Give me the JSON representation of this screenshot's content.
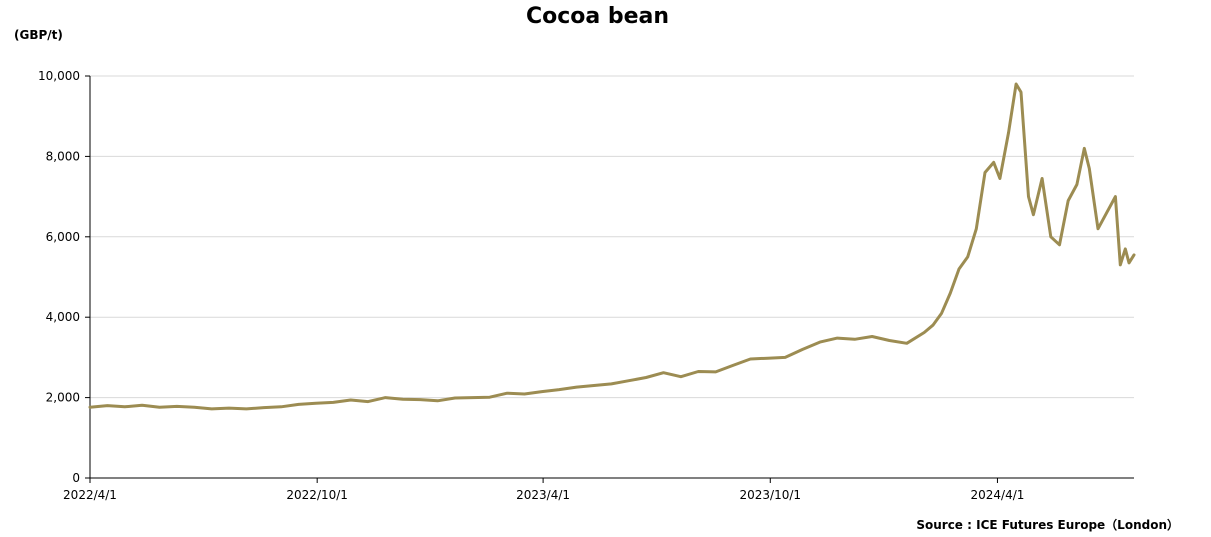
{
  "chart_data": {
    "type": "line",
    "title": "Cocoa bean",
    "ylabel": "(GBP/t)",
    "source": "Source : ICE Futures Europe（London）",
    "ylim": [
      0,
      10000
    ],
    "xlim": [
      "2022-04-01",
      "2024-07-20"
    ],
    "y_ticks": [
      0,
      2000,
      4000,
      6000,
      8000,
      10000
    ],
    "y_tick_labels": [
      "0",
      "2,000",
      "4,000",
      "6,000",
      "8,000",
      "10,000"
    ],
    "x_ticks": [
      "2022-04-01",
      "2022-10-01",
      "2023-04-01",
      "2023-10-01",
      "2024-04-01"
    ],
    "x_tick_labels": [
      "2022/4/1",
      "2022/10/1",
      "2023/4/1",
      "2023/10/1",
      "2024/4/1"
    ],
    "grid": "horizontal",
    "legend": "none",
    "colors": {
      "line": "#9C8C52",
      "grid": "#D9D9D9",
      "axis": "#000000"
    },
    "series": [
      {
        "points": [
          [
            "2022-04-01",
            1760
          ],
          [
            "2022-04-15",
            1800
          ],
          [
            "2022-04-29",
            1770
          ],
          [
            "2022-05-13",
            1810
          ],
          [
            "2022-05-27",
            1760
          ],
          [
            "2022-06-10",
            1780
          ],
          [
            "2022-06-24",
            1760
          ],
          [
            "2022-07-08",
            1720
          ],
          [
            "2022-07-22",
            1740
          ],
          [
            "2022-08-05",
            1720
          ],
          [
            "2022-08-19",
            1750
          ],
          [
            "2022-09-02",
            1770
          ],
          [
            "2022-09-16",
            1830
          ],
          [
            "2022-09-30",
            1860
          ],
          [
            "2022-10-14",
            1880
          ],
          [
            "2022-10-28",
            1940
          ],
          [
            "2022-11-11",
            1900
          ],
          [
            "2022-11-25",
            2000
          ],
          [
            "2022-12-09",
            1960
          ],
          [
            "2022-12-23",
            1950
          ],
          [
            "2023-01-06",
            1920
          ],
          [
            "2023-01-20",
            1990
          ],
          [
            "2023-02-03",
            2000
          ],
          [
            "2023-02-17",
            2010
          ],
          [
            "2023-03-03",
            2110
          ],
          [
            "2023-03-17",
            2090
          ],
          [
            "2023-03-31",
            2150
          ],
          [
            "2023-04-14",
            2200
          ],
          [
            "2023-04-28",
            2260
          ],
          [
            "2023-05-12",
            2300
          ],
          [
            "2023-05-26",
            2340
          ],
          [
            "2023-06-09",
            2420
          ],
          [
            "2023-06-23",
            2500
          ],
          [
            "2023-07-07",
            2620
          ],
          [
            "2023-07-21",
            2520
          ],
          [
            "2023-08-04",
            2650
          ],
          [
            "2023-08-18",
            2640
          ],
          [
            "2023-09-01",
            2800
          ],
          [
            "2023-09-15",
            2960
          ],
          [
            "2023-09-29",
            2980
          ],
          [
            "2023-10-13",
            3000
          ],
          [
            "2023-10-27",
            3200
          ],
          [
            "2023-11-10",
            3380
          ],
          [
            "2023-11-24",
            3480
          ],
          [
            "2023-12-08",
            3450
          ],
          [
            "2023-12-22",
            3520
          ],
          [
            "2024-01-05",
            3420
          ],
          [
            "2024-01-19",
            3350
          ],
          [
            "2024-02-02",
            3620
          ],
          [
            "2024-02-09",
            3800
          ],
          [
            "2024-02-16",
            4100
          ],
          [
            "2024-02-23",
            4600
          ],
          [
            "2024-03-01",
            5200
          ],
          [
            "2024-03-08",
            5500
          ],
          [
            "2024-03-15",
            6200
          ],
          [
            "2024-03-22",
            7600
          ],
          [
            "2024-03-29",
            7850
          ],
          [
            "2024-04-03",
            7450
          ],
          [
            "2024-04-10",
            8600
          ],
          [
            "2024-04-16",
            9800
          ],
          [
            "2024-04-20",
            9600
          ],
          [
            "2024-04-26",
            7000
          ],
          [
            "2024-04-30",
            6550
          ],
          [
            "2024-05-07",
            7450
          ],
          [
            "2024-05-14",
            6000
          ],
          [
            "2024-05-21",
            5800
          ],
          [
            "2024-05-28",
            6900
          ],
          [
            "2024-06-04",
            7300
          ],
          [
            "2024-06-10",
            8200
          ],
          [
            "2024-06-14",
            7700
          ],
          [
            "2024-06-21",
            6200
          ],
          [
            "2024-06-28",
            6600
          ],
          [
            "2024-07-05",
            7000
          ],
          [
            "2024-07-09",
            5300
          ],
          [
            "2024-07-13",
            5700
          ],
          [
            "2024-07-16",
            5350
          ],
          [
            "2024-07-20",
            5550
          ]
        ]
      }
    ]
  }
}
